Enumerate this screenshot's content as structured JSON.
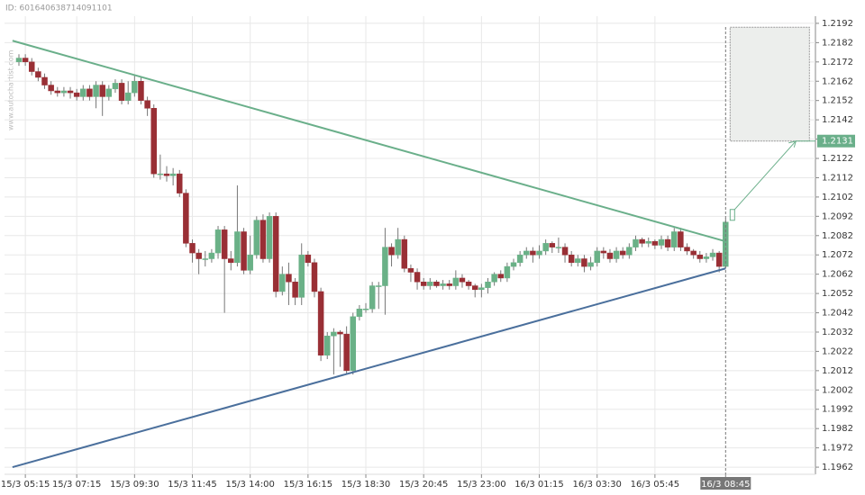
{
  "id_text": "ID: 601640638714091101",
  "watermark": "www.autochartist.com",
  "chart_data": {
    "type": "candlestick",
    "up_color": "#6ab187",
    "down_color": "#992f35",
    "grid": true,
    "ylim": [
      1.19583,
      1.21957
    ],
    "yticks": [
      1.1962,
      1.1972,
      1.1982,
      1.1992,
      1.2002,
      1.2012,
      1.2022,
      1.2032,
      1.2042,
      1.2052,
      1.2062,
      1.2072,
      1.2082,
      1.2092,
      1.2102,
      1.2112,
      1.2122,
      1.2132,
      1.2142,
      1.2152,
      1.2162,
      1.2172,
      1.2182,
      1.2192
    ],
    "categories": [
      null,
      "15/3 05:15",
      null,
      null,
      null,
      null,
      null,
      null,
      null,
      "15/3 07:15",
      null,
      null,
      null,
      null,
      null,
      null,
      null,
      null,
      "15/3 09:30",
      null,
      null,
      null,
      null,
      null,
      null,
      null,
      null,
      "15/3 11:45",
      null,
      null,
      null,
      null,
      null,
      null,
      null,
      null,
      "15/3 14:00",
      null,
      null,
      null,
      null,
      null,
      null,
      null,
      null,
      "15/3 16:15",
      null,
      null,
      null,
      null,
      null,
      null,
      null,
      null,
      "15/3 18:30",
      null,
      null,
      null,
      null,
      null,
      null,
      null,
      null,
      "15/3 20:45",
      null,
      null,
      null,
      null,
      null,
      null,
      null,
      null,
      "15/3 23:00",
      null,
      null,
      null,
      null,
      null,
      null,
      null,
      null,
      "16/3 01:15",
      null,
      null,
      null,
      null,
      null,
      null,
      null,
      null,
      "16/3 03:30",
      null,
      null,
      null,
      null,
      null,
      null,
      null,
      null,
      "16/3 05:45",
      null,
      null,
      null,
      null,
      null,
      null,
      null,
      null,
      null,
      null,
      "16/3 08:45"
    ],
    "open": [
      1.2172,
      1.2174,
      1.2172,
      1.2167,
      1.2164,
      1.216,
      1.2157,
      1.2156,
      1.2157,
      1.2156,
      1.2154,
      1.2158,
      1.2154,
      1.216,
      1.2154,
      1.2158,
      1.2161,
      1.2152,
      1.2156,
      1.2162,
      1.2152,
      1.2148,
      1.2114,
      1.2114,
      1.2113,
      1.2114,
      1.2104,
      1.2078,
      1.2073,
      1.207,
      1.207,
      1.2073,
      1.2085,
      1.207,
      1.2068,
      1.2084,
      1.2064,
      1.2072,
      1.209,
      1.207,
      1.2092,
      1.2053,
      1.2062,
      1.2058,
      1.205,
      1.2072,
      1.2068,
      1.2053,
      1.202,
      1.203,
      1.2032,
      1.2031,
      1.2012,
      1.204,
      1.2044,
      1.2044,
      1.2056,
      1.2056,
      1.2076,
      1.2072,
      1.208,
      1.2065,
      1.2063,
      1.2058,
      1.2056,
      1.2058,
      1.2056,
      1.2057,
      1.2056,
      1.206,
      1.2058,
      1.2056,
      1.2054,
      1.2055,
      1.2058,
      1.2062,
      1.206,
      1.2066,
      1.2068,
      1.2072,
      1.2074,
      1.2072,
      1.2074,
      1.2078,
      1.2076,
      1.2076,
      1.2072,
      1.2068,
      1.207,
      1.2066,
      1.2068,
      1.2074,
      1.2073,
      1.207,
      1.2074,
      1.2072,
      1.2076,
      1.208,
      1.2078,
      1.2079,
      1.2077,
      1.208,
      1.2076,
      1.2084,
      1.2076,
      1.2074,
      1.2072,
      1.207,
      1.2071,
      1.2073,
      1.2066
    ],
    "high": [
      1.2176,
      1.2176,
      1.2174,
      1.2169,
      1.2166,
      1.2162,
      1.2159,
      1.2159,
      1.2159,
      1.2158,
      1.216,
      1.216,
      1.2162,
      1.2162,
      1.216,
      1.2163,
      1.2163,
      1.2162,
      1.2165,
      1.2164,
      1.2154,
      1.215,
      1.2124,
      1.2118,
      1.2117,
      1.2116,
      1.2106,
      1.208,
      1.2075,
      1.2074,
      1.2075,
      1.2087,
      1.2087,
      1.2074,
      1.2108,
      1.2086,
      1.2082,
      1.2092,
      1.2093,
      1.2094,
      1.2094,
      1.2066,
      1.2068,
      1.206,
      1.2078,
      1.2074,
      1.207,
      1.2055,
      1.2032,
      1.2034,
      1.2033,
      1.2035,
      1.2042,
      1.2046,
      1.2047,
      1.2058,
      1.2058,
      1.2086,
      1.2078,
      1.2086,
      1.2082,
      1.2067,
      1.2065,
      1.206,
      1.206,
      1.2059,
      1.2059,
      1.2059,
      1.2064,
      1.2062,
      1.2059,
      1.2057,
      1.2057,
      1.206,
      1.2063,
      1.2064,
      1.2068,
      1.207,
      1.2074,
      1.2076,
      1.2076,
      1.2077,
      1.208,
      1.2079,
      1.2081,
      1.2078,
      1.2074,
      1.2072,
      1.2072,
      1.2071,
      1.2076,
      1.2076,
      1.2075,
      1.2076,
      1.2076,
      1.2078,
      1.2082,
      1.2081,
      1.2081,
      1.208,
      1.2082,
      1.2082,
      1.2086,
      1.2086,
      1.2078,
      1.2075,
      1.2074,
      1.2073,
      1.2075,
      1.2074,
      1.2091
    ],
    "low": [
      1.217,
      1.217,
      1.2165,
      1.2162,
      1.2158,
      1.2155,
      1.2154,
      1.2154,
      1.2153,
      1.2152,
      1.2152,
      1.2152,
      1.2148,
      1.2144,
      1.2152,
      1.2156,
      1.215,
      1.215,
      1.2154,
      1.215,
      1.2144,
      1.2112,
      1.2111,
      1.211,
      1.2108,
      1.2102,
      1.2076,
      1.2068,
      1.2062,
      1.2066,
      1.2068,
      1.207,
      1.2042,
      1.2064,
      1.2066,
      1.2062,
      1.2062,
      1.207,
      1.2068,
      1.2068,
      1.205,
      1.2051,
      1.2046,
      1.2046,
      1.2046,
      1.2066,
      1.205,
      1.2017,
      1.2018,
      1.201,
      1.2014,
      1.201,
      1.201,
      1.2038,
      1.2042,
      1.2042,
      1.2044,
      1.2041,
      1.2066,
      1.207,
      1.2063,
      1.2058,
      1.2054,
      1.2054,
      1.2054,
      1.2055,
      1.2054,
      1.2054,
      1.2054,
      1.2055,
      1.2054,
      1.205,
      1.205,
      1.2052,
      1.2056,
      1.2058,
      1.2058,
      1.2064,
      1.2066,
      1.207,
      1.2068,
      1.207,
      1.2072,
      1.2073,
      1.2073,
      1.2068,
      1.2066,
      1.2066,
      1.2063,
      1.2064,
      1.2066,
      1.207,
      1.2068,
      1.2068,
      1.207,
      1.207,
      1.2074,
      1.2076,
      1.2076,
      1.2075,
      1.2075,
      1.2074,
      1.2074,
      1.2074,
      1.2072,
      1.207,
      1.2068,
      1.2068,
      1.2069,
      1.2063,
      1.2065
    ],
    "close": [
      1.2174,
      1.2172,
      1.2167,
      1.2164,
      1.216,
      1.2157,
      1.2156,
      1.2157,
      1.2156,
      1.2154,
      1.2158,
      1.2154,
      1.216,
      1.2154,
      1.2158,
      1.2161,
      1.2152,
      1.2156,
      1.2162,
      1.2152,
      1.2148,
      1.2114,
      1.2114,
      1.2113,
      1.2114,
      1.2104,
      1.2078,
      1.2073,
      1.207,
      1.207,
      1.2073,
      1.2085,
      1.207,
      1.2068,
      1.2084,
      1.2064,
      1.2072,
      1.209,
      1.207,
      1.2092,
      1.2053,
      1.2062,
      1.2058,
      1.205,
      1.2072,
      1.2068,
      1.2053,
      1.202,
      1.203,
      1.2032,
      1.2031,
      1.2012,
      1.204,
      1.2044,
      1.2044,
      1.2056,
      1.2056,
      1.2076,
      1.2072,
      1.208,
      1.2065,
      1.2063,
      1.2058,
      1.2056,
      1.2058,
      1.2056,
      1.2057,
      1.2056,
      1.206,
      1.2058,
      1.2056,
      1.2054,
      1.2055,
      1.2058,
      1.2062,
      1.206,
      1.2066,
      1.2068,
      1.2072,
      1.2074,
      1.2072,
      1.2074,
      1.2078,
      1.2076,
      1.2076,
      1.2072,
      1.2068,
      1.207,
      1.2066,
      1.2068,
      1.2074,
      1.2073,
      1.207,
      1.2074,
      1.2072,
      1.2076,
      1.208,
      1.2078,
      1.2079,
      1.2077,
      1.208,
      1.2076,
      1.2084,
      1.2076,
      1.2074,
      1.2072,
      1.207,
      1.2071,
      1.2073,
      1.2066,
      1.2089
    ],
    "trendlines": [
      {
        "color": "#6aaf8a",
        "x": [
          -1,
          110
        ],
        "y": [
          1.2183,
          1.2079
        ]
      },
      {
        "color": "#4a6f9c",
        "x": [
          -1,
          110
        ],
        "y": [
          1.1962,
          1.2065
        ]
      }
    ],
    "forecast": {
      "color": "#6aaf8a",
      "zone": [
        1.2131,
        1.219
      ],
      "target": {
        "value": 1.2131,
        "label": "1.2131"
      }
    }
  }
}
